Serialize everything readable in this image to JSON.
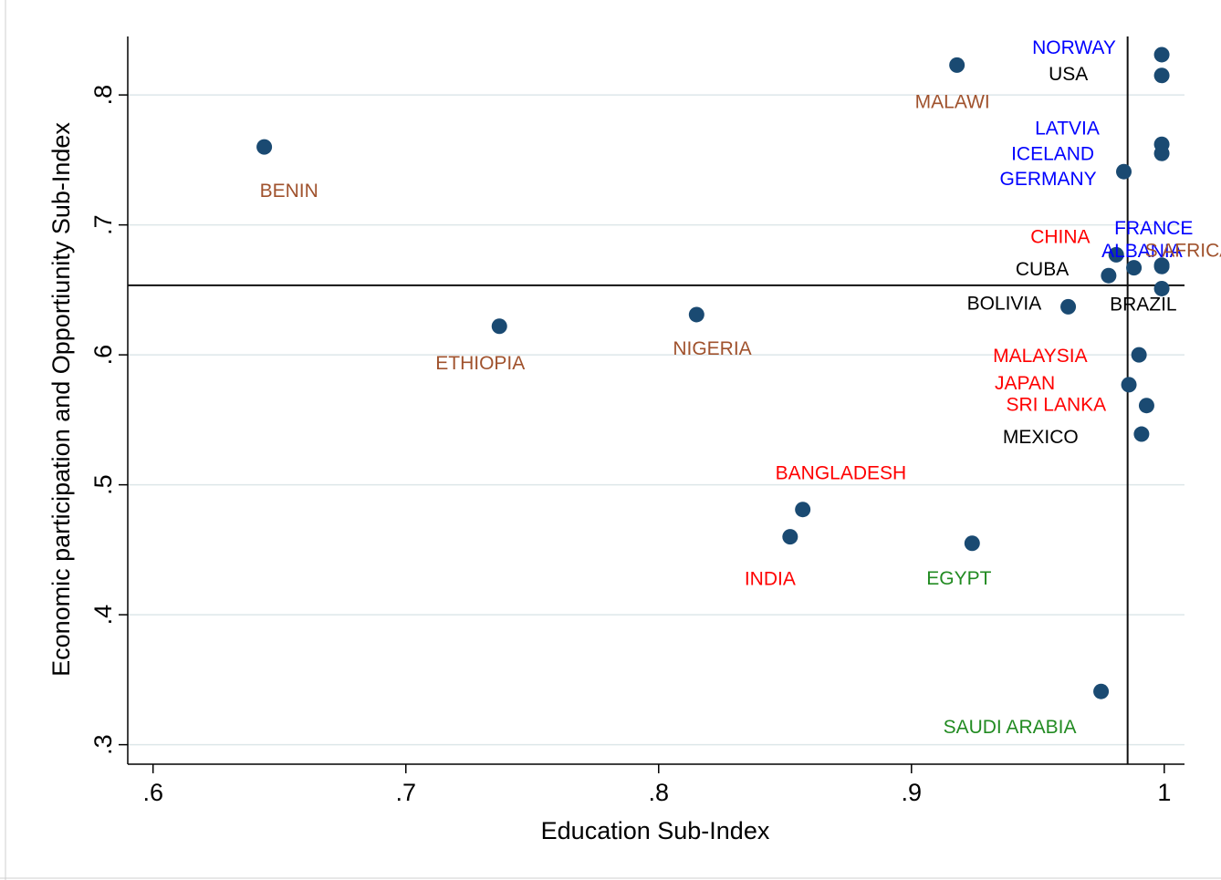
{
  "chart_data": {
    "type": "scatter",
    "title": "",
    "xlabel": "Education Sub-Index",
    "ylabel": "Economic participation and Opportiunity Sub-Index",
    "xlim": [
      0.59,
      1.008
    ],
    "ylim": [
      0.285,
      0.845
    ],
    "x_ticks": [
      0.6,
      0.7,
      0.8,
      0.9,
      1.0
    ],
    "x_tick_labels": [
      ".6",
      ".7",
      ".8",
      ".9",
      "1"
    ],
    "y_ticks": [
      0.3,
      0.4,
      0.5,
      0.6,
      0.7,
      0.8
    ],
    "y_tick_labels": [
      ".3",
      ".4",
      ".5",
      ".6",
      ".7",
      ".8"
    ],
    "grid": "horizontal",
    "marker_color": "#1a4a72",
    "reference_lines": {
      "x": 0.9855,
      "y": 0.6535
    },
    "points": [
      {
        "label": "NORWAY",
        "x": 0.999,
        "y": 0.831,
        "color": "#0000ff"
      },
      {
        "label": "USA",
        "x": 0.999,
        "y": 0.815,
        "color": "#000000"
      },
      {
        "label": "MALAWI",
        "x": 0.918,
        "y": 0.823,
        "color": "#a0522d"
      },
      {
        "label": "LATVIA",
        "x": 0.999,
        "y": 0.762,
        "color": "#0000ff"
      },
      {
        "label": "ICELAND",
        "x": 0.999,
        "y": 0.755,
        "color": "#0000ff"
      },
      {
        "label": "GERMANY",
        "x": 0.984,
        "y": 0.741,
        "color": "#0000ff"
      },
      {
        "label": "BENIN",
        "x": 0.644,
        "y": 0.76,
        "color": "#a0522d"
      },
      {
        "label": "FRANCE",
        "x": 0.999,
        "y": 0.669,
        "color": "#0000ff"
      },
      {
        "label": "ALBANIA",
        "x": 0.999,
        "y": 0.668,
        "color": "#0000ff"
      },
      {
        "label": "S AFRICA",
        "x": 0.988,
        "y": 0.667,
        "color": "#a0522d"
      },
      {
        "label": "CHINA",
        "x": 0.981,
        "y": 0.677,
        "color": "#ff0000"
      },
      {
        "label": "CUBA",
        "x": 0.978,
        "y": 0.661,
        "color": "#000000"
      },
      {
        "label": "BRAZIL",
        "x": 0.999,
        "y": 0.651,
        "color": "#000000"
      },
      {
        "label": "BOLIVIA",
        "x": 0.962,
        "y": 0.637,
        "color": "#000000"
      },
      {
        "label": "ETHIOPIA",
        "x": 0.737,
        "y": 0.622,
        "color": "#a0522d"
      },
      {
        "label": "NIGERIA",
        "x": 0.815,
        "y": 0.631,
        "color": "#a0522d"
      },
      {
        "label": "MALAYSIA",
        "x": 0.99,
        "y": 0.6,
        "color": "#ff0000"
      },
      {
        "label": "JAPAN",
        "x": 0.986,
        "y": 0.577,
        "color": "#ff0000"
      },
      {
        "label": "SRI LANKA",
        "x": 0.993,
        "y": 0.561,
        "color": "#ff0000"
      },
      {
        "label": "MEXICO",
        "x": 0.991,
        "y": 0.539,
        "color": "#000000"
      },
      {
        "label": "BANGLADESH",
        "x": 0.857,
        "y": 0.481,
        "color": "#ff0000"
      },
      {
        "label": "INDIA",
        "x": 0.852,
        "y": 0.46,
        "color": "#ff0000"
      },
      {
        "label": "EGYPT",
        "x": 0.924,
        "y": 0.455,
        "color": "#228b22"
      },
      {
        "label": "SAUDI ARABIA",
        "x": 0.975,
        "y": 0.341,
        "color": "#228b22"
      }
    ]
  }
}
